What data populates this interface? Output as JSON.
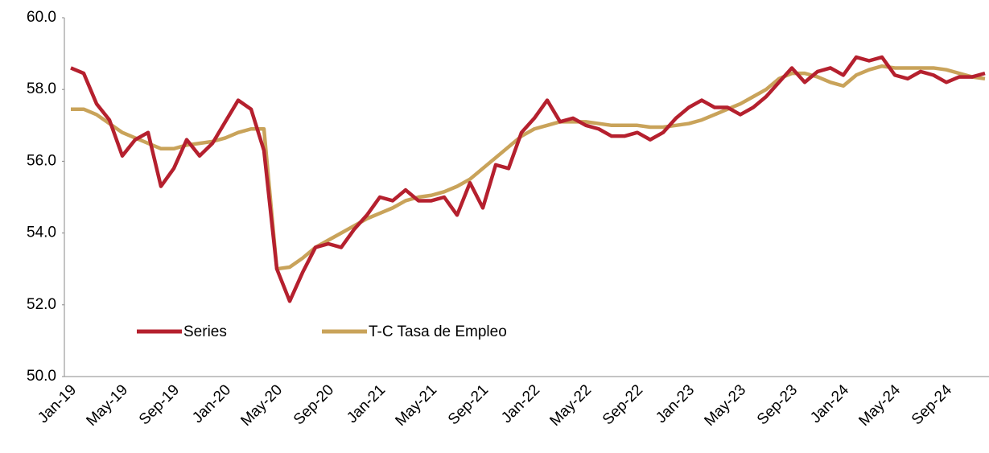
{
  "chart_data": {
    "type": "line",
    "categories": [
      "Jan-19",
      null,
      null,
      null,
      "May-19",
      null,
      null,
      null,
      "Sep-19",
      null,
      null,
      null,
      "Jan-20",
      null,
      null,
      null,
      "May-20",
      null,
      null,
      null,
      "Sep-20",
      null,
      null,
      null,
      "Jan-21",
      null,
      null,
      null,
      "May-21",
      null,
      null,
      null,
      "Sep-21",
      null,
      null,
      null,
      "Jan-22",
      null,
      null,
      null,
      "May-22",
      null,
      null,
      null,
      "Sep-22",
      null,
      null,
      null,
      "Jan-23",
      null,
      null,
      null,
      "May-23",
      null,
      null,
      null,
      "Sep-23",
      null,
      null,
      null,
      "Jan-24",
      null,
      null,
      null,
      "May-24",
      null,
      null,
      null,
      "Sep-24",
      null,
      null,
      null
    ],
    "series": [
      {
        "name": "Series",
        "color": "#b5202e",
        "values": [
          58.6,
          58.45,
          57.6,
          57.15,
          56.15,
          56.6,
          56.8,
          55.3,
          55.8,
          56.6,
          56.15,
          56.5,
          57.1,
          57.7,
          57.45,
          56.3,
          53.0,
          52.1,
          52.9,
          53.6,
          53.7,
          53.6,
          54.1,
          54.5,
          55.0,
          54.9,
          55.2,
          54.9,
          54.9,
          55.0,
          54.5,
          55.4,
          54.7,
          55.9,
          55.8,
          56.8,
          57.2,
          57.7,
          57.1,
          57.2,
          57.0,
          56.9,
          56.7,
          56.7,
          56.8,
          56.6,
          56.8,
          57.2,
          57.5,
          57.7,
          57.5,
          57.5,
          57.3,
          57.5,
          57.8,
          58.2,
          58.6,
          58.2,
          58.5,
          58.6,
          58.4,
          58.9,
          58.8,
          58.9,
          58.4,
          58.3,
          58.5,
          58.4,
          58.2,
          58.35,
          58.35,
          58.45
        ]
      },
      {
        "name": "T-C Tasa de Empleo",
        "color": "#c9a35a",
        "values": [
          57.45,
          57.45,
          57.3,
          57.05,
          56.8,
          56.65,
          56.5,
          56.35,
          56.35,
          56.45,
          56.5,
          56.55,
          56.65,
          56.8,
          56.9,
          56.9,
          53.0,
          53.05,
          53.3,
          53.6,
          53.8,
          54.0,
          54.2,
          54.4,
          54.55,
          54.7,
          54.9,
          55.0,
          55.05,
          55.15,
          55.3,
          55.5,
          55.8,
          56.1,
          56.4,
          56.7,
          56.9,
          57.0,
          57.1,
          57.1,
          57.1,
          57.05,
          57.0,
          57.0,
          57.0,
          56.95,
          56.95,
          57.0,
          57.05,
          57.15,
          57.3,
          57.45,
          57.6,
          57.8,
          58.0,
          58.3,
          58.45,
          58.45,
          58.35,
          58.2,
          58.1,
          58.4,
          58.55,
          58.65,
          58.6,
          58.6,
          58.6,
          58.6,
          58.55,
          58.45,
          58.35,
          58.3
        ]
      }
    ],
    "ylim": [
      50,
      60
    ],
    "yticks": [
      {
        "value": 50,
        "label": "50.0"
      },
      {
        "value": 52,
        "label": "52.0"
      },
      {
        "value": 54,
        "label": "54.0"
      },
      {
        "value": 56,
        "label": "56.0"
      },
      {
        "value": 58,
        "label": "58.0"
      },
      {
        "value": 60,
        "label": "60.0"
      }
    ],
    "grid": false,
    "legend": "lower-left"
  }
}
